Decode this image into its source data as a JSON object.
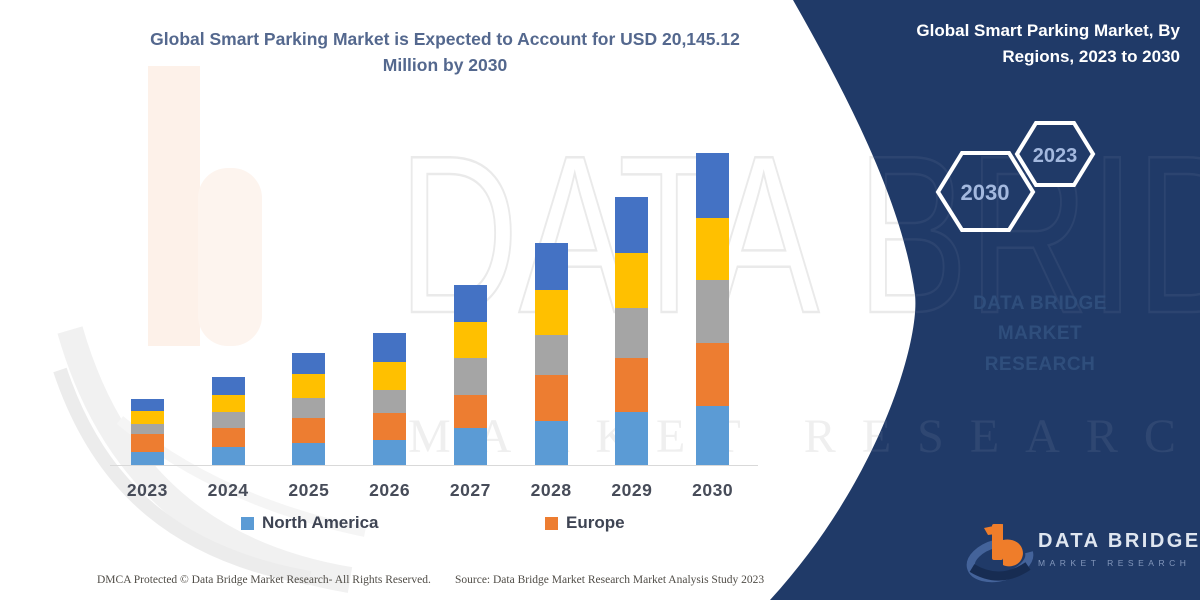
{
  "header": {
    "chart_title": "Global Smart Parking Market is Expected to Account for USD 20,145.12 Million by 2030",
    "panel_title": "Global Smart Parking Market, By Regions, 2023 to 2030"
  },
  "hexagons": [
    {
      "label": "2030"
    },
    {
      "label": "2023"
    }
  ],
  "brand_text": "DATA BRIDGE MARKET RESEARCH",
  "watermarks": {
    "big_text": "DATA BRIDGE",
    "spaced_text": "MARKET RESEARCH"
  },
  "legend": [
    {
      "label": "North America",
      "color": "#5B9BD5"
    },
    {
      "label": "Europe",
      "color": "#ED7D31"
    }
  ],
  "logo": {
    "name": "DATA BRIDGE",
    "subname": "MARKET RESEARCH"
  },
  "footer": {
    "left": "DMCA Protected © Data Bridge Market Research- All Rights Reserved.",
    "right": "Source: Data Bridge Market Research Market Analysis Study 2023"
  },
  "colors": {
    "navy_panel": "#203a68",
    "title_text": "#54688e",
    "axis_line": "#d9d9d9"
  },
  "chart_data": {
    "type": "bar",
    "stacked": true,
    "title": "Global Smart Parking Market is Expected to Account for USD 20,145.12 Million by 2030",
    "unit": "USD Million",
    "xlabel": "",
    "ylabel": "",
    "y_axis_shown": false,
    "gridlines": false,
    "legend_position": "bottom",
    "values_estimated_from_bar_heights": true,
    "categories": [
      "2023",
      "2024",
      "2025",
      "2026",
      "2027",
      "2028",
      "2029",
      "2030"
    ],
    "totals_usd_million": [
      4260,
      5680,
      7230,
      8520,
      11620,
      14330,
      17300,
      20145.12
    ],
    "series": [
      {
        "name": "North America",
        "color": "#5B9BD5",
        "values": [
          840,
          1160,
          1420,
          1610,
          2390,
          2870,
          3420,
          3810
        ]
      },
      {
        "name": "Europe",
        "color": "#ED7D31",
        "values": [
          1160,
          1230,
          1610,
          1750,
          2130,
          2940,
          3480,
          4070
        ]
      },
      {
        "name": "",
        "color": "#A5A5A5",
        "values": [
          645,
          1030,
          1290,
          1480,
          2390,
          2580,
          3220,
          4070
        ]
      },
      {
        "name": "",
        "color": "#FFC000",
        "values": [
          840,
          1100,
          1550,
          1810,
          2320,
          2940,
          3540,
          4000
        ]
      },
      {
        "name": "",
        "color": "#4472C4",
        "values": [
          775,
          1160,
          1360,
          1870,
          2390,
          3000,
          3640,
          4195.12
        ]
      }
    ]
  }
}
